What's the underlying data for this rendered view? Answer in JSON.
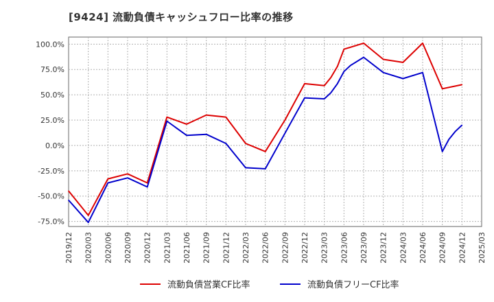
{
  "chart_data": {
    "type": "line",
    "title": "[9424]  流動負債キャッシュフロー比率の推移",
    "xlabel": "",
    "ylabel": "",
    "x_ticks": [
      "2019/12",
      "2020/03",
      "2020/06",
      "2020/09",
      "2020/12",
      "2021/03",
      "2021/06",
      "2021/09",
      "2021/12",
      "2022/03",
      "2022/06",
      "2022/09",
      "2022/12",
      "2023/03",
      "2023/06",
      "2023/09",
      "2023/12",
      "2024/03",
      "2024/06",
      "2024/09",
      "2024/12",
      "2025/03"
    ],
    "y_ticks": [
      "100.0%",
      "75.0%",
      "50.0%",
      "25.0%",
      "0.0%",
      "-25.0%",
      "-50.0%",
      "-75.0%"
    ],
    "y_tick_values": [
      100,
      75,
      50,
      25,
      0,
      -25,
      -50,
      -75
    ],
    "ylim": [
      -80,
      107
    ],
    "grid": true,
    "legend_position": "bottom",
    "series": [
      {
        "name": "流動負債営業CF比率",
        "color": "#dd0000",
        "points": [
          {
            "x": "2019/12",
            "y": -45
          },
          {
            "x": "2020/03",
            "y": -69
          },
          {
            "x": "2020/06",
            "y": -33
          },
          {
            "x": "2020/09",
            "y": -28
          },
          {
            "x": "2020/12",
            "y": -37
          },
          {
            "x": "2021/03",
            "y": 28
          },
          {
            "x": "2021/06",
            "y": 21
          },
          {
            "x": "2021/09",
            "y": 30
          },
          {
            "x": "2021/12",
            "y": 28
          },
          {
            "x": "2022/03",
            "y": 2
          },
          {
            "x": "2022/06",
            "y": -6
          },
          {
            "x": "2022/09",
            "y": 25
          },
          {
            "x": "2022/12",
            "y": 61
          },
          {
            "x": "2023/03",
            "y": 59
          },
          {
            "x": "2023/04",
            "y": 67
          },
          {
            "x": "2023/05",
            "y": 78
          },
          {
            "x": "2023/06",
            "y": 95
          },
          {
            "x": "2023/09",
            "y": 101
          },
          {
            "x": "2023/12",
            "y": 85
          },
          {
            "x": "2024/03",
            "y": 82
          },
          {
            "x": "2024/06",
            "y": 101
          },
          {
            "x": "2024/09",
            "y": 56
          },
          {
            "x": "2024/12",
            "y": 60
          }
        ]
      },
      {
        "name": "流動負債フリーCF比率",
        "color": "#0000cc",
        "points": [
          {
            "x": "2019/12",
            "y": -54
          },
          {
            "x": "2020/03",
            "y": -76
          },
          {
            "x": "2020/06",
            "y": -37
          },
          {
            "x": "2020/09",
            "y": -32
          },
          {
            "x": "2020/12",
            "y": -41
          },
          {
            "x": "2021/03",
            "y": 24
          },
          {
            "x": "2021/06",
            "y": 10
          },
          {
            "x": "2021/09",
            "y": 11
          },
          {
            "x": "2021/12",
            "y": 2
          },
          {
            "x": "2022/03",
            "y": -22
          },
          {
            "x": "2022/06",
            "y": -23
          },
          {
            "x": "2022/09",
            "y": 12
          },
          {
            "x": "2022/12",
            "y": 47
          },
          {
            "x": "2023/03",
            "y": 46
          },
          {
            "x": "2023/04",
            "y": 52
          },
          {
            "x": "2023/05",
            "y": 61
          },
          {
            "x": "2023/06",
            "y": 73
          },
          {
            "x": "2023/07",
            "y": 79
          },
          {
            "x": "2023/09",
            "y": 87
          },
          {
            "x": "2023/12",
            "y": 72
          },
          {
            "x": "2024/03",
            "y": 66
          },
          {
            "x": "2024/06",
            "y": 72
          },
          {
            "x": "2024/09",
            "y": -6
          },
          {
            "x": "2024/10",
            "y": 6
          },
          {
            "x": "2024/11",
            "y": 14
          },
          {
            "x": "2024/12",
            "y": 20
          }
        ]
      }
    ]
  }
}
